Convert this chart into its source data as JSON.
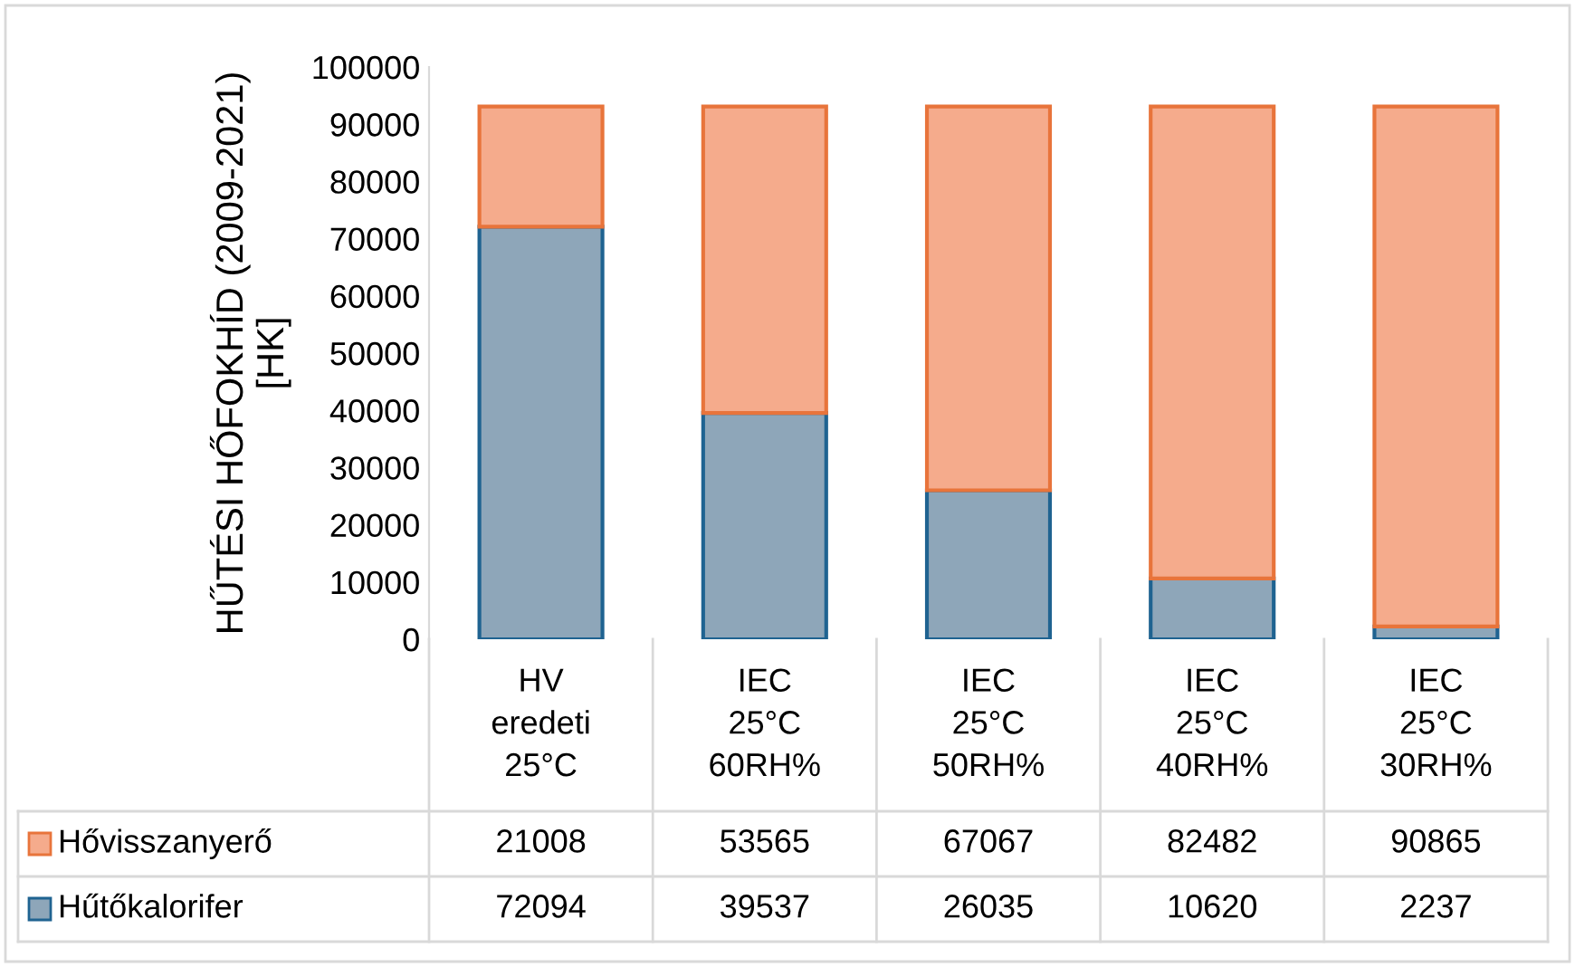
{
  "chart_data": {
    "type": "bar",
    "stacked": true,
    "ylabel": "HŰTÉSI HŐFOKHÍD (2009-2021)\n[HK]",
    "categories": [
      "HV\neredeti\n25°C",
      "IEC\n25°C\n60RH%",
      "IEC\n25°C\n50RH%",
      "IEC\n25°C\n40RH%",
      "IEC\n25°C\n30RH%"
    ],
    "series": [
      {
        "name": "Hűtőkalorifer",
        "color": "#8ea6b9",
        "values": [
          72094,
          39537,
          26035,
          10620,
          2237
        ]
      },
      {
        "name": "Hővisszanyerő",
        "color": "#f5ab8c",
        "values": [
          21008,
          53565,
          67067,
          82482,
          90865
        ]
      }
    ],
    "ylim": [
      0,
      100000
    ],
    "yticks": [
      0,
      10000,
      20000,
      30000,
      40000,
      50000,
      60000,
      70000,
      80000,
      90000,
      100000
    ],
    "grid": false,
    "legend": "bottom",
    "data_labels": true
  }
}
